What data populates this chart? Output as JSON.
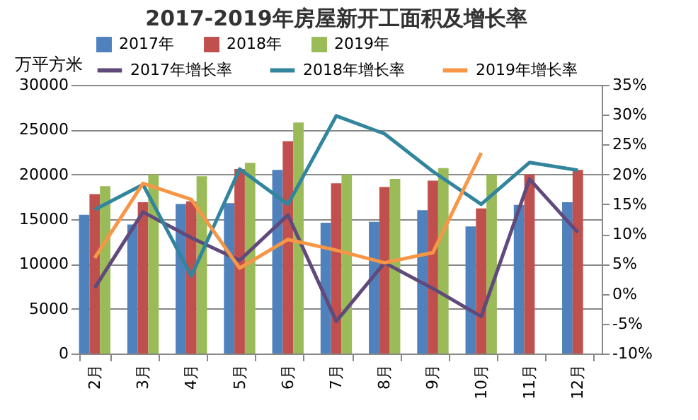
{
  "chart_data": {
    "type": "bar",
    "title": "2017-2019年房屋新开工面积及增长率",
    "ylabel": "万平方米",
    "categories": [
      "2月",
      "3月",
      "4月",
      "5月",
      "6月",
      "7月",
      "8月",
      "9月",
      "10月",
      "11月",
      "12月"
    ],
    "series": [
      {
        "name": "2017年",
        "color": "#4f81bd",
        "values": [
          15500,
          14400,
          16700,
          16800,
          20500,
          14600,
          14700,
          16000,
          14200,
          16600,
          16900
        ]
      },
      {
        "name": "2018年",
        "color": "#c0504d",
        "values": [
          17800,
          16900,
          17000,
          20600,
          23700,
          19000,
          18600,
          19300,
          16200,
          20000,
          20500
        ]
      },
      {
        "name": "2019年",
        "color": "#9bbb59",
        "values": [
          18700,
          20000,
          19800,
          21300,
          25800,
          20000,
          19500,
          20700,
          20000,
          null,
          null
        ]
      },
      {
        "name": "2017年增长率",
        "type": "line",
        "axis": "y2",
        "color": "#604a7b",
        "values": [
          1,
          13.7,
          9.4,
          5.6,
          13.2,
          -4.6,
          5.2,
          0.9,
          -3.8,
          19.2,
          10.3
        ]
      },
      {
        "name": "2018年增长率",
        "type": "line",
        "axis": "y2",
        "color": "#31859c",
        "values": [
          14.1,
          18.3,
          3,
          20.9,
          15,
          29.8,
          26.8,
          20.5,
          15,
          22,
          20.7
        ]
      },
      {
        "name": "2019年增长率",
        "type": "line",
        "axis": "y2",
        "color": "#f79646",
        "values": [
          6,
          18.5,
          15.8,
          4.3,
          9.1,
          7.3,
          5.2,
          6.9,
          23.6,
          null,
          null
        ]
      }
    ],
    "ylim": [
      0,
      30000
    ],
    "yticks": [
      0,
      5000,
      10000,
      15000,
      20000,
      25000,
      30000
    ],
    "y2lim": [
      -10,
      35
    ],
    "y2ticks": [
      {
        "value": -10,
        "label": "-10%"
      },
      {
        "value": -5,
        "label": "-5%"
      },
      {
        "value": 0,
        "label": "0%"
      },
      {
        "value": 5,
        "label": "5%"
      },
      {
        "value": 10,
        "label": "10%"
      },
      {
        "value": 15,
        "label": "15%"
      },
      {
        "value": 20,
        "label": "20%"
      },
      {
        "value": 25,
        "label": "25%"
      },
      {
        "value": 30,
        "label": "30%"
      },
      {
        "value": 35,
        "label": "35%"
      }
    ],
    "grid": "y",
    "legend": "top",
    "marker": "none",
    "line_style": "solid"
  }
}
